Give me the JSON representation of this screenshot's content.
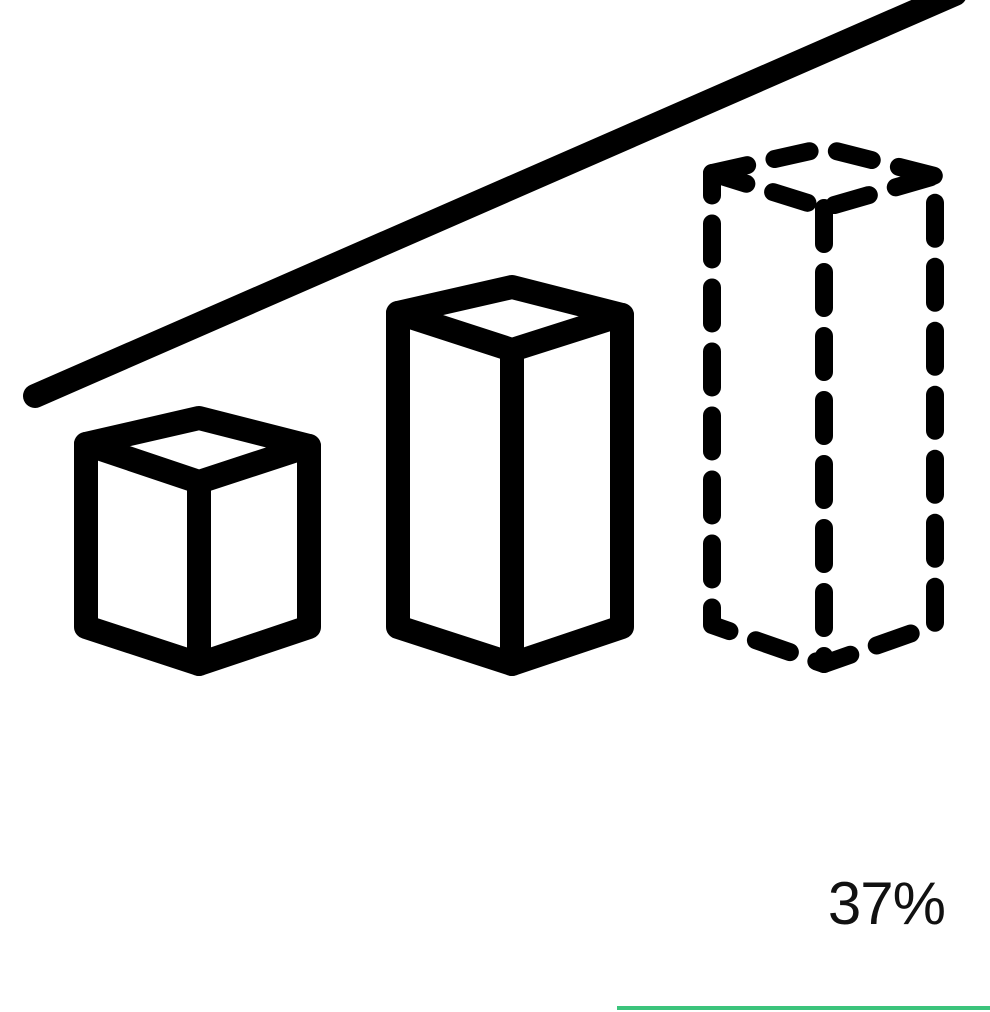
{
  "illustration": {
    "icon": "growth-chart-icon",
    "stroke_color": "#000000"
  },
  "progress": {
    "label": "37%",
    "value": 0.37,
    "fill_color": "#3bc47b"
  }
}
